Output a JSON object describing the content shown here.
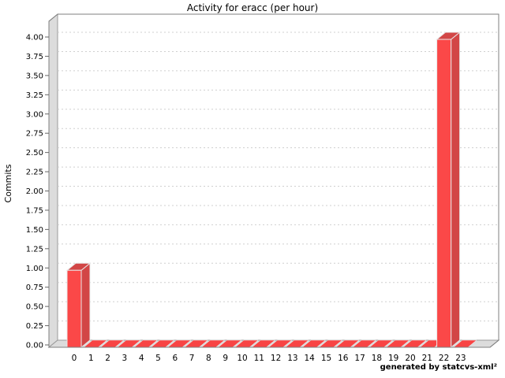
{
  "title": "Activity for eracc (per hour)",
  "footer": {
    "text": "generated by statcvs-xml²"
  },
  "chart_data": {
    "type": "bar",
    "style": "3d",
    "title": "Activity for eracc (per hour)",
    "xlabel": "",
    "ylabel": "Commits",
    "categories": [
      "0",
      "1",
      "2",
      "3",
      "4",
      "5",
      "6",
      "7",
      "8",
      "9",
      "10",
      "11",
      "12",
      "13",
      "14",
      "15",
      "16",
      "17",
      "18",
      "19",
      "20",
      "21",
      "22",
      "23"
    ],
    "values": [
      1,
      0,
      0,
      0,
      0,
      0,
      0,
      0,
      0,
      0,
      0,
      0,
      0,
      0,
      0,
      0,
      0,
      0,
      0,
      0,
      0,
      0,
      4,
      0
    ],
    "y_ticks": [
      "0.00",
      "0.25",
      "0.50",
      "0.75",
      "1.00",
      "1.25",
      "1.50",
      "1.75",
      "2.00",
      "2.25",
      "2.50",
      "2.75",
      "3.00",
      "3.25",
      "3.50",
      "3.75",
      "4.00"
    ],
    "ylim": [
      0,
      4.25
    ],
    "grid": true,
    "legend": "none",
    "colors": {
      "bar_front": "#fb4848",
      "bar_side": "#d24646",
      "bar_top": "#d24646",
      "bar_zero": "#f84444",
      "bar_outline": "#e8e8e8",
      "wall": "#dcdcdc",
      "wall_edge": "#9a9a9a",
      "grid": "#cfcfcf",
      "outline": "#7f7f7f",
      "text": "#000000"
    }
  }
}
